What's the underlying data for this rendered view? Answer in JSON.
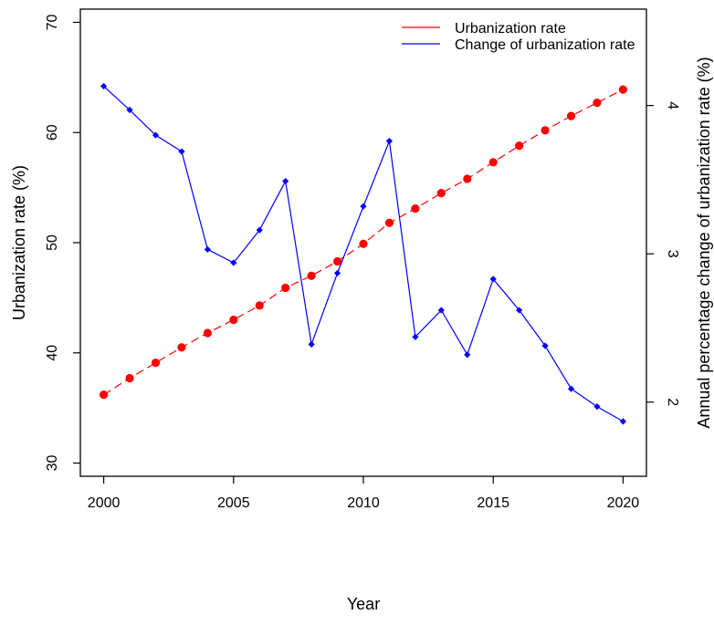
{
  "chart_data": {
    "type": "line",
    "x": [
      2000,
      2001,
      2002,
      2003,
      2004,
      2005,
      2006,
      2007,
      2008,
      2009,
      2010,
      2011,
      2012,
      2013,
      2014,
      2015,
      2016,
      2017,
      2018,
      2019,
      2020
    ],
    "xlabel": "Year",
    "ylabel": "Urbanization rate (%)",
    "y2label": "Annual percentage change of urbanization rate (%)",
    "xlim": [
      1999.1,
      2020.9
    ],
    "ylim": [
      28.8,
      71.2
    ],
    "y2lim": [
      1.5,
      4.65
    ],
    "xticks": [
      2000,
      2005,
      2010,
      2015,
      2020
    ],
    "yticks": [
      30,
      40,
      50,
      60,
      70
    ],
    "y2ticks": [
      2,
      3,
      4
    ],
    "grid": false,
    "legend_position": "top-right",
    "series": [
      {
        "name": "Urbanization rate",
        "axis": "left",
        "color": "#ff0000",
        "line_style": "dashed",
        "marker": "circle",
        "values": [
          36.2,
          37.7,
          39.1,
          40.5,
          41.8,
          43.0,
          44.3,
          45.9,
          47.0,
          48.3,
          49.9,
          51.8,
          53.1,
          54.5,
          55.8,
          57.3,
          58.8,
          60.2,
          61.5,
          62.7,
          63.9
        ]
      },
      {
        "name": "Change of urbanization rate",
        "axis": "right",
        "color": "#0000ff",
        "line_style": "solid",
        "marker": "diamond",
        "values": [
          4.13,
          3.97,
          3.8,
          3.69,
          3.03,
          2.94,
          3.16,
          3.49,
          2.39,
          2.87,
          3.32,
          3.76,
          2.44,
          2.62,
          2.32,
          2.83,
          2.62,
          2.38,
          2.09,
          1.97,
          1.87
        ]
      }
    ]
  }
}
